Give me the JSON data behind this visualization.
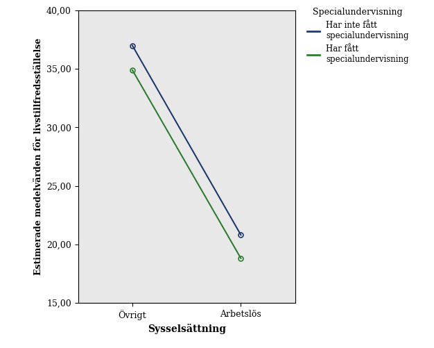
{
  "title": "",
  "xlabel": "Sysselsättning",
  "ylabel": "Estimerade medelvärden för livstillfredsställelse",
  "x_categories": [
    "Övrigt",
    "Arbetslös"
  ],
  "series": [
    {
      "label_line1": "Har inte fått",
      "label_line2": "specialundervisning",
      "color": "#1f3a6e",
      "values": [
        37.0,
        20.8
      ]
    },
    {
      "label_line1": "Har fått",
      "label_line2": "specialundervisning",
      "color": "#2e7d32",
      "values": [
        34.9,
        18.8
      ]
    }
  ],
  "legend_title": "Specialundervisning",
  "ylim": [
    15.0,
    40.0
  ],
  "yticks": [
    15.0,
    20.0,
    25.0,
    30.0,
    35.0,
    40.0
  ],
  "figure_bg_color": "#ffffff",
  "plot_bg_color": "#e8e8e8",
  "marker": "o",
  "marker_size": 5,
  "linewidth": 1.5
}
